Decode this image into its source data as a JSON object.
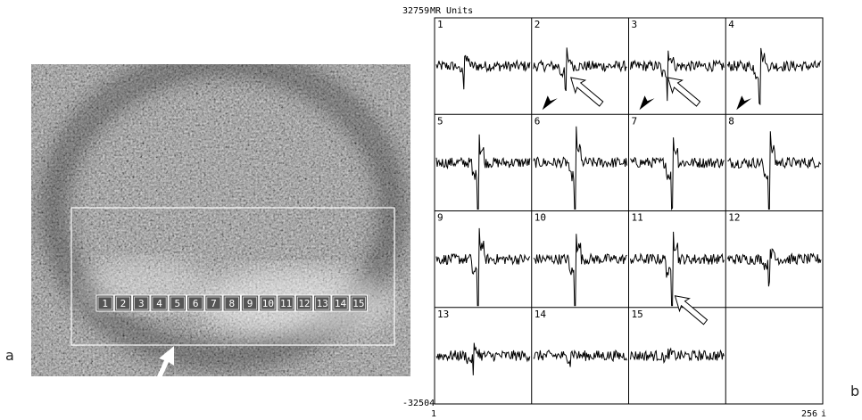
{
  "left_panel": {
    "label": "a",
    "voxels": [
      "1",
      "2",
      "3",
      "4",
      "5",
      "6",
      "7",
      "8",
      "9",
      "10",
      "11",
      "12",
      "13",
      "14",
      "15"
    ]
  },
  "right_panel": {
    "label": "b",
    "y_max": "32759",
    "y_unit": "MR Units",
    "y_min": "-32504",
    "x_start": "1",
    "x_end": "256",
    "x_unit": "i",
    "cells": [
      "1",
      "2",
      "3",
      "4",
      "5",
      "6",
      "7",
      "8",
      "9",
      "10",
      "11",
      "12",
      "13",
      "14",
      "15"
    ]
  }
}
